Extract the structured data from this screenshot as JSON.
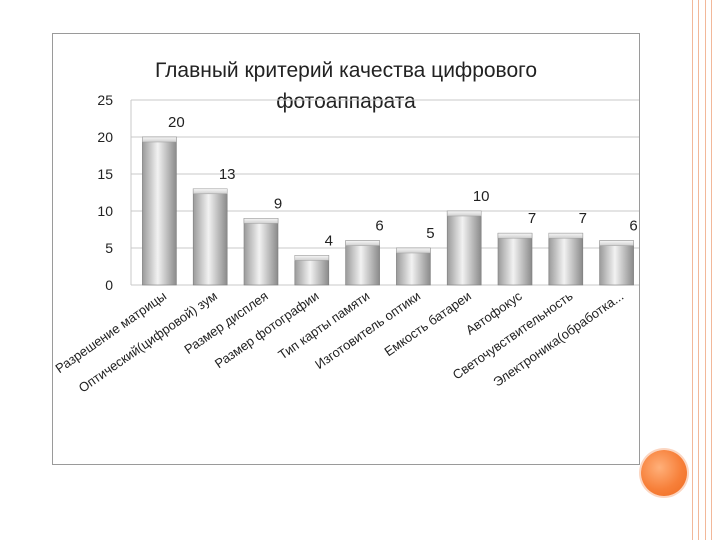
{
  "colors": {
    "bar_light": "#ededed",
    "bar_dark": "#8f8f8f",
    "grid": "#c8c8c8",
    "text": "#222222",
    "accent_dot": "#f7803a",
    "frame_rule": "#f2b89a"
  },
  "chart_data": {
    "type": "bar",
    "title_lines": [
      "Главный критерий качества цифрового",
      "фотоаппарата"
    ],
    "categories": [
      "Разрешение матрицы",
      "Оптический(цифровой) зум",
      "Размер дисплея",
      "Размер фотографии",
      "Тип карты памяти",
      "Изготовитель оптики",
      "Емкость батареи",
      "Автофокус",
      "Светочувствительность",
      "Электроника(обработка..."
    ],
    "values": [
      20,
      13,
      9,
      4,
      6,
      5,
      10,
      7,
      7,
      6
    ],
    "ylim": [
      0,
      25
    ],
    "yticks": [
      0,
      5,
      10,
      15,
      20,
      25
    ],
    "grid": true,
    "legend": "none"
  }
}
